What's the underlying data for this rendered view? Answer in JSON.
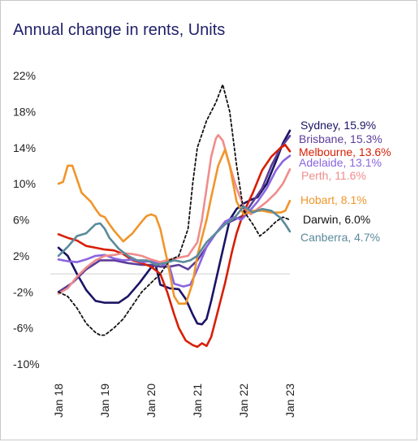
{
  "chart_data": {
    "type": "line",
    "title": "Annual change in rents, Units",
    "xlabel": "",
    "ylabel": "",
    "x_ticks": [
      "Jan 18",
      "Jan 19",
      "Jan 20",
      "Jan 21",
      "Jan 22",
      "Jan 23"
    ],
    "x_range": [
      2018.0,
      2023.0
    ],
    "y_ticks": [
      "22%",
      "18%",
      "14%",
      "10%",
      "6%",
      "2%",
      "-2%",
      "-6%",
      "-10%"
    ],
    "y_tick_values": [
      22,
      18,
      14,
      10,
      6,
      2,
      -2,
      -6,
      -10
    ],
    "ylim": [
      -10,
      22
    ],
    "zero_line": true,
    "grid": false,
    "legend": "end-labels-right",
    "series": [
      {
        "name": "Sydney",
        "label": "Sydney, 15.9%",
        "color": "#1b1464",
        "dash": "",
        "points": [
          [
            2018.0,
            2.9
          ],
          [
            2018.2,
            2.0
          ],
          [
            2018.4,
            0.0
          ],
          [
            2018.6,
            -1.8
          ],
          [
            2018.8,
            -3.0
          ],
          [
            2019.0,
            -3.2
          ],
          [
            2019.3,
            -3.2
          ],
          [
            2019.5,
            -2.5
          ],
          [
            2019.75,
            -1.0
          ],
          [
            2020.0,
            0.7
          ],
          [
            2020.1,
            1.0
          ],
          [
            2020.2,
            -1.2
          ],
          [
            2020.4,
            -1.6
          ],
          [
            2020.6,
            -1.7
          ],
          [
            2020.75,
            -2.8
          ],
          [
            2020.9,
            -4.5
          ],
          [
            2021.0,
            -5.5
          ],
          [
            2021.1,
            -5.6
          ],
          [
            2021.2,
            -5.0
          ],
          [
            2021.3,
            -3.0
          ],
          [
            2021.5,
            1.5
          ],
          [
            2021.7,
            6.0
          ],
          [
            2021.85,
            7.2
          ],
          [
            2022.0,
            7.8
          ],
          [
            2022.15,
            8.2
          ],
          [
            2022.3,
            8.5
          ],
          [
            2022.5,
            10.0
          ],
          [
            2022.7,
            12.5
          ],
          [
            2022.85,
            14.5
          ],
          [
            2023.0,
            15.9
          ]
        ]
      },
      {
        "name": "Brisbane",
        "label": "Brisbane, 15.3%",
        "color": "#5c3d99",
        "dash": "",
        "points": [
          [
            2018.0,
            -2.0
          ],
          [
            2018.3,
            -1.0
          ],
          [
            2018.6,
            0.5
          ],
          [
            2018.9,
            1.5
          ],
          [
            2019.2,
            1.5
          ],
          [
            2019.5,
            1.2
          ],
          [
            2019.8,
            1.0
          ],
          [
            2020.0,
            1.0
          ],
          [
            2020.2,
            0.8
          ],
          [
            2020.4,
            0.8
          ],
          [
            2020.6,
            1.0
          ],
          [
            2020.8,
            0.5
          ],
          [
            2021.0,
            1.5
          ],
          [
            2021.2,
            3.0
          ],
          [
            2021.4,
            4.5
          ],
          [
            2021.6,
            5.5
          ],
          [
            2021.8,
            6.0
          ],
          [
            2022.0,
            6.5
          ],
          [
            2022.2,
            8.0
          ],
          [
            2022.4,
            9.5
          ],
          [
            2022.6,
            12.0
          ],
          [
            2022.8,
            14.0
          ],
          [
            2023.0,
            15.3
          ]
        ]
      },
      {
        "name": "Melbourne",
        "label": "Melbourne, 13.6%",
        "color": "#d81e05",
        "dash": "",
        "points": [
          [
            2018.0,
            4.4
          ],
          [
            2018.2,
            4.0
          ],
          [
            2018.4,
            3.7
          ],
          [
            2018.6,
            3.1
          ],
          [
            2018.8,
            2.9
          ],
          [
            2019.0,
            2.7
          ],
          [
            2019.2,
            2.6
          ],
          [
            2019.4,
            2.2
          ],
          [
            2019.6,
            1.5
          ],
          [
            2019.8,
            1.2
          ],
          [
            2020.0,
            0.8
          ],
          [
            2020.2,
            0.0
          ],
          [
            2020.35,
            -2.0
          ],
          [
            2020.5,
            -4.5
          ],
          [
            2020.6,
            -6.0
          ],
          [
            2020.75,
            -7.4
          ],
          [
            2020.9,
            -7.9
          ],
          [
            2021.0,
            -8.1
          ],
          [
            2021.1,
            -7.7
          ],
          [
            2021.2,
            -8.0
          ],
          [
            2021.3,
            -7.0
          ],
          [
            2021.45,
            -4.0
          ],
          [
            2021.6,
            -1.0
          ],
          [
            2021.75,
            2.5
          ],
          [
            2021.85,
            4.5
          ],
          [
            2022.0,
            6.8
          ],
          [
            2022.2,
            9.0
          ],
          [
            2022.4,
            11.5
          ],
          [
            2022.6,
            13.0
          ],
          [
            2022.8,
            14.0
          ],
          [
            2022.9,
            14.3
          ],
          [
            2023.0,
            13.6
          ]
        ]
      },
      {
        "name": "Adelaide",
        "label": "Adelaide, 13.1%",
        "color": "#8a65e0",
        "dash": "",
        "points": [
          [
            2018.0,
            1.6
          ],
          [
            2018.2,
            1.4
          ],
          [
            2018.4,
            1.3
          ],
          [
            2018.6,
            1.6
          ],
          [
            2018.8,
            2.0
          ],
          [
            2019.0,
            2.1
          ],
          [
            2019.2,
            1.7
          ],
          [
            2019.4,
            1.5
          ],
          [
            2019.6,
            1.6
          ],
          [
            2019.8,
            1.3
          ],
          [
            2020.0,
            1.4
          ],
          [
            2020.2,
            1.1
          ],
          [
            2020.4,
            0.8
          ],
          [
            2020.5,
            -1.1
          ],
          [
            2020.7,
            -1.4
          ],
          [
            2020.85,
            -1.2
          ],
          [
            2021.0,
            0.5
          ],
          [
            2021.2,
            3.0
          ],
          [
            2021.4,
            4.5
          ],
          [
            2021.6,
            5.8
          ],
          [
            2021.8,
            6.3
          ],
          [
            2021.95,
            6.0
          ],
          [
            2022.1,
            6.8
          ],
          [
            2022.3,
            8.0
          ],
          [
            2022.5,
            9.5
          ],
          [
            2022.7,
            11.5
          ],
          [
            2022.85,
            12.5
          ],
          [
            2023.0,
            13.1
          ]
        ]
      },
      {
        "name": "Perth",
        "label": "Perth, 11.6%",
        "color": "#f08c8c",
        "dash": "",
        "points": [
          [
            2018.0,
            -2.2
          ],
          [
            2018.2,
            -1.6
          ],
          [
            2018.4,
            -0.3
          ],
          [
            2018.6,
            0.7
          ],
          [
            2018.8,
            1.5
          ],
          [
            2019.0,
            2.0
          ],
          [
            2019.2,
            2.1
          ],
          [
            2019.4,
            2.3
          ],
          [
            2019.6,
            2.2
          ],
          [
            2019.8,
            2.0
          ],
          [
            2020.0,
            1.6
          ],
          [
            2020.2,
            1.3
          ],
          [
            2020.4,
            1.6
          ],
          [
            2020.6,
            1.8
          ],
          [
            2020.8,
            2.0
          ],
          [
            2021.0,
            3.5
          ],
          [
            2021.1,
            6.0
          ],
          [
            2021.2,
            9.5
          ],
          [
            2021.3,
            13.0
          ],
          [
            2021.4,
            15.0
          ],
          [
            2021.45,
            15.4
          ],
          [
            2021.55,
            14.8
          ],
          [
            2021.7,
            12.0
          ],
          [
            2021.85,
            9.5
          ],
          [
            2022.0,
            7.5
          ],
          [
            2022.15,
            6.6
          ],
          [
            2022.3,
            7.2
          ],
          [
            2022.5,
            8.0
          ],
          [
            2022.7,
            9.0
          ],
          [
            2022.85,
            10.0
          ],
          [
            2023.0,
            11.6
          ]
        ]
      },
      {
        "name": "Hobart",
        "label": "Hobart, 8.1%",
        "color": "#f0952a",
        "dash": "",
        "points": [
          [
            2018.0,
            10.0
          ],
          [
            2018.1,
            10.2
          ],
          [
            2018.2,
            12.0
          ],
          [
            2018.3,
            12.0
          ],
          [
            2018.4,
            10.5
          ],
          [
            2018.5,
            9.0
          ],
          [
            2018.6,
            8.5
          ],
          [
            2018.7,
            8.0
          ],
          [
            2018.8,
            7.2
          ],
          [
            2018.9,
            6.5
          ],
          [
            2019.0,
            6.3
          ],
          [
            2019.1,
            5.5
          ],
          [
            2019.2,
            4.8
          ],
          [
            2019.4,
            3.6
          ],
          [
            2019.6,
            4.5
          ],
          [
            2019.8,
            5.8
          ],
          [
            2019.9,
            6.4
          ],
          [
            2020.0,
            6.6
          ],
          [
            2020.1,
            6.4
          ],
          [
            2020.2,
            5.0
          ],
          [
            2020.35,
            1.5
          ],
          [
            2020.5,
            -2.5
          ],
          [
            2020.6,
            -3.3
          ],
          [
            2020.75,
            -3.3
          ],
          [
            2020.9,
            -1.0
          ],
          [
            2021.0,
            2.0
          ],
          [
            2021.2,
            6.0
          ],
          [
            2021.3,
            8.5
          ],
          [
            2021.45,
            12.0
          ],
          [
            2021.6,
            13.8
          ],
          [
            2021.7,
            12.0
          ],
          [
            2021.85,
            8.0
          ],
          [
            2022.0,
            6.6
          ],
          [
            2022.2,
            7.0
          ],
          [
            2022.4,
            7.0
          ],
          [
            2022.6,
            6.8
          ],
          [
            2022.8,
            6.8
          ],
          [
            2022.9,
            7.0
          ],
          [
            2023.0,
            8.1
          ]
        ]
      },
      {
        "name": "Darwin",
        "label": "Darwin, 6.0%",
        "color": "#111111",
        "dash": "3,3",
        "points": [
          [
            2018.0,
            -2.0
          ],
          [
            2018.2,
            -2.5
          ],
          [
            2018.4,
            -3.8
          ],
          [
            2018.6,
            -5.5
          ],
          [
            2018.8,
            -6.5
          ],
          [
            2018.9,
            -6.8
          ],
          [
            2019.0,
            -6.8
          ],
          [
            2019.2,
            -6.0
          ],
          [
            2019.4,
            -5.0
          ],
          [
            2019.6,
            -3.5
          ],
          [
            2019.8,
            -2.0
          ],
          [
            2020.0,
            -1.0
          ],
          [
            2020.2,
            0.0
          ],
          [
            2020.4,
            1.5
          ],
          [
            2020.6,
            2.0
          ],
          [
            2020.8,
            5.0
          ],
          [
            2020.9,
            10.0
          ],
          [
            2021.0,
            14.0
          ],
          [
            2021.2,
            17.0
          ],
          [
            2021.4,
            19.0
          ],
          [
            2021.55,
            21.0
          ],
          [
            2021.7,
            18.0
          ],
          [
            2021.85,
            12.0
          ],
          [
            2022.0,
            7.0
          ],
          [
            2022.2,
            5.5
          ],
          [
            2022.35,
            4.2
          ],
          [
            2022.5,
            4.8
          ],
          [
            2022.7,
            5.8
          ],
          [
            2022.85,
            6.3
          ],
          [
            2023.0,
            6.0
          ]
        ]
      },
      {
        "name": "Canberra",
        "label": "Canberra, 4.7%",
        "color": "#5a8a9a",
        "dash": "",
        "points": [
          [
            2018.0,
            2.0
          ],
          [
            2018.2,
            3.0
          ],
          [
            2018.4,
            4.2
          ],
          [
            2018.6,
            4.5
          ],
          [
            2018.8,
            5.5
          ],
          [
            2018.9,
            5.6
          ],
          [
            2019.0,
            5.0
          ],
          [
            2019.1,
            4.0
          ],
          [
            2019.3,
            2.8
          ],
          [
            2019.5,
            2.0
          ],
          [
            2019.7,
            1.5
          ],
          [
            2019.9,
            1.5
          ],
          [
            2020.0,
            1.3
          ],
          [
            2020.1,
            1.0
          ],
          [
            2020.3,
            1.2
          ],
          [
            2020.5,
            1.5
          ],
          [
            2020.7,
            1.3
          ],
          [
            2020.85,
            1.5
          ],
          [
            2021.0,
            2.0
          ],
          [
            2021.2,
            3.5
          ],
          [
            2021.4,
            4.5
          ],
          [
            2021.6,
            5.5
          ],
          [
            2021.8,
            6.2
          ],
          [
            2022.0,
            7.5
          ],
          [
            2022.2,
            6.8
          ],
          [
            2022.4,
            7.2
          ],
          [
            2022.6,
            7.0
          ],
          [
            2022.8,
            6.2
          ],
          [
            2022.9,
            5.5
          ],
          [
            2023.0,
            4.7
          ]
        ]
      }
    ]
  }
}
